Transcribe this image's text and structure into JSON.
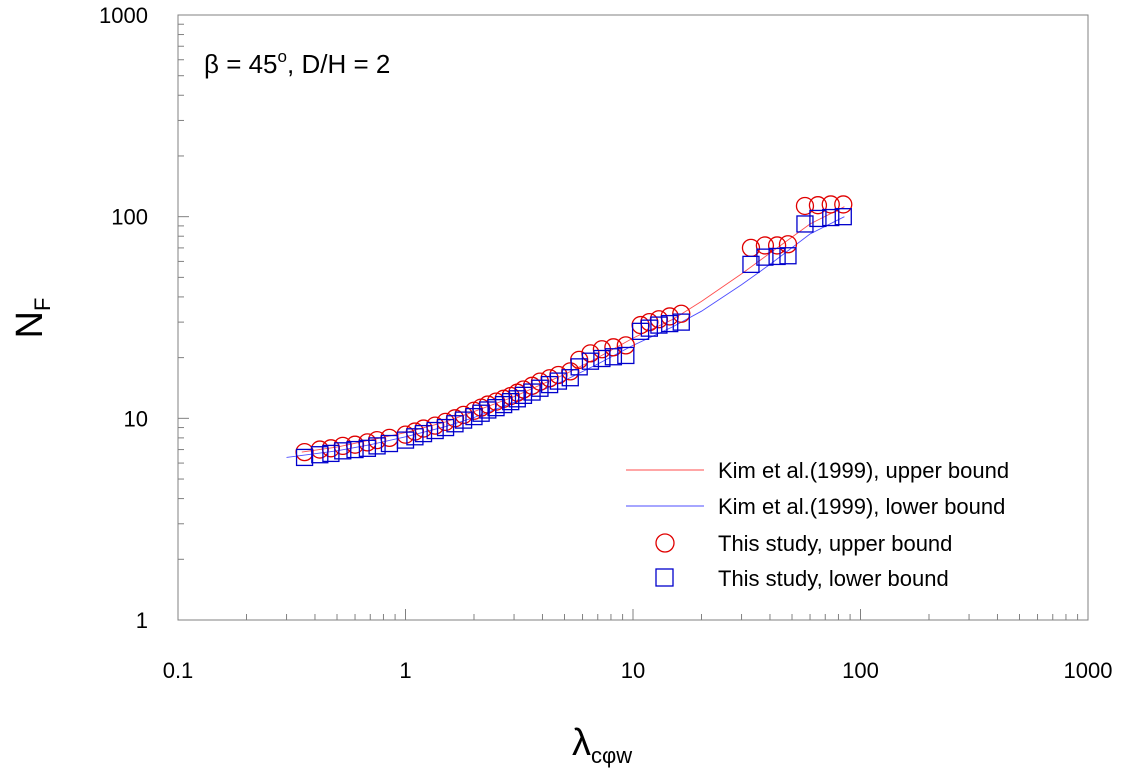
{
  "chart_data": {
    "type": "scatter",
    "title": "",
    "annotation": {
      "beta_symbol": "β",
      "beta_eq": " = 45",
      "beta_sup": "o",
      "rest": ", D/H = 2"
    },
    "xlabel": {
      "main": "λ",
      "sub": "cφw"
    },
    "ylabel": {
      "main": "N",
      "sub": "F"
    },
    "xscale": "log",
    "yscale": "log",
    "xlim": [
      0.1,
      1000
    ],
    "ylim": [
      1,
      1000
    ],
    "x_tick_labels": [
      "0.1",
      "1",
      "10",
      "100",
      "1000"
    ],
    "y_tick_labels": [
      "1",
      "10",
      "100",
      "1000"
    ],
    "legend_position": "lower-right",
    "series": [
      {
        "name": "Kim et al.(1999), upper bound",
        "style": "line",
        "color": "#ff4d4d",
        "x": [
          0.35,
          0.5,
          0.7,
          1.0,
          1.5,
          2.0,
          3.0,
          4.0,
          5.0,
          7.0,
          10.0,
          15.0,
          20.0,
          30.0,
          40.0,
          60.0,
          85.0
        ],
        "y": [
          6.8,
          7.2,
          7.8,
          8.5,
          9.6,
          10.8,
          12.8,
          14.8,
          16.5,
          20.0,
          25.0,
          31.0,
          38.0,
          52.0,
          66.0,
          92.0,
          112.0
        ]
      },
      {
        "name": "Kim et al.(1999), lower bound",
        "style": "line",
        "color": "#4d4dff",
        "x": [
          0.3,
          0.5,
          0.7,
          1.0,
          1.5,
          2.0,
          3.0,
          4.0,
          5.0,
          7.0,
          10.0,
          15.0,
          20.0,
          30.0,
          40.0,
          60.0,
          85.0
        ],
        "y": [
          6.4,
          6.9,
          7.4,
          8.1,
          9.1,
          10.1,
          12.0,
          13.8,
          15.4,
          18.6,
          23.0,
          28.5,
          34.0,
          46.0,
          58.0,
          82.0,
          100.0
        ]
      },
      {
        "name": "This study, upper bound",
        "style": "circle",
        "color": "#e00000",
        "x": [
          0.36,
          0.42,
          0.47,
          0.53,
          0.6,
          0.68,
          0.75,
          0.85,
          1.0,
          1.1,
          1.2,
          1.35,
          1.5,
          1.65,
          1.8,
          2.0,
          2.15,
          2.3,
          2.5,
          2.7,
          2.9,
          3.1,
          3.3,
          3.6,
          3.9,
          4.3,
          4.7,
          5.3,
          5.8,
          6.5,
          7.3,
          8.2,
          9.3,
          10.8,
          11.8,
          13.0,
          14.5,
          16.3,
          33.0,
          38.0,
          43.0,
          48.0,
          57.0,
          65.0,
          74.0,
          84.0
        ],
        "y": [
          6.8,
          7.0,
          7.1,
          7.3,
          7.4,
          7.6,
          7.8,
          8.0,
          8.3,
          8.6,
          8.9,
          9.2,
          9.6,
          10.0,
          10.4,
          10.9,
          11.3,
          11.7,
          12.1,
          12.5,
          12.9,
          13.4,
          13.9,
          14.5,
          15.2,
          15.8,
          16.4,
          17.1,
          19.5,
          21.0,
          22.0,
          22.5,
          23.0,
          29.0,
          30.0,
          31.0,
          32.0,
          33.0,
          70.0,
          72.0,
          72.0,
          73.0,
          113.0,
          114.0,
          115.0,
          115.0
        ]
      },
      {
        "name": "This study, lower bound",
        "style": "square",
        "color": "#0000cc",
        "x": [
          0.36,
          0.42,
          0.47,
          0.53,
          0.6,
          0.68,
          0.75,
          0.85,
          1.0,
          1.1,
          1.2,
          1.35,
          1.5,
          1.65,
          1.8,
          2.0,
          2.15,
          2.3,
          2.5,
          2.7,
          2.9,
          3.1,
          3.3,
          3.6,
          3.9,
          4.3,
          4.7,
          5.3,
          5.8,
          6.5,
          7.3,
          8.2,
          9.3,
          10.8,
          11.8,
          13.0,
          14.5,
          16.3,
          33.0,
          38.0,
          43.0,
          48.0,
          57.0,
          65.0,
          74.0,
          84.0
        ],
        "y": [
          6.4,
          6.6,
          6.7,
          6.9,
          7.0,
          7.1,
          7.3,
          7.5,
          7.8,
          8.1,
          8.4,
          8.7,
          9.0,
          9.4,
          9.8,
          10.2,
          10.6,
          11.0,
          11.3,
          11.7,
          12.1,
          12.5,
          13.0,
          13.5,
          14.1,
          14.7,
          15.3,
          15.9,
          18.0,
          19.2,
          19.8,
          20.2,
          20.5,
          27.0,
          28.0,
          29.0,
          29.5,
          30.0,
          58.0,
          63.0,
          63.5,
          64.0,
          92.0,
          98.0,
          99.0,
          100.0
        ]
      }
    ]
  }
}
